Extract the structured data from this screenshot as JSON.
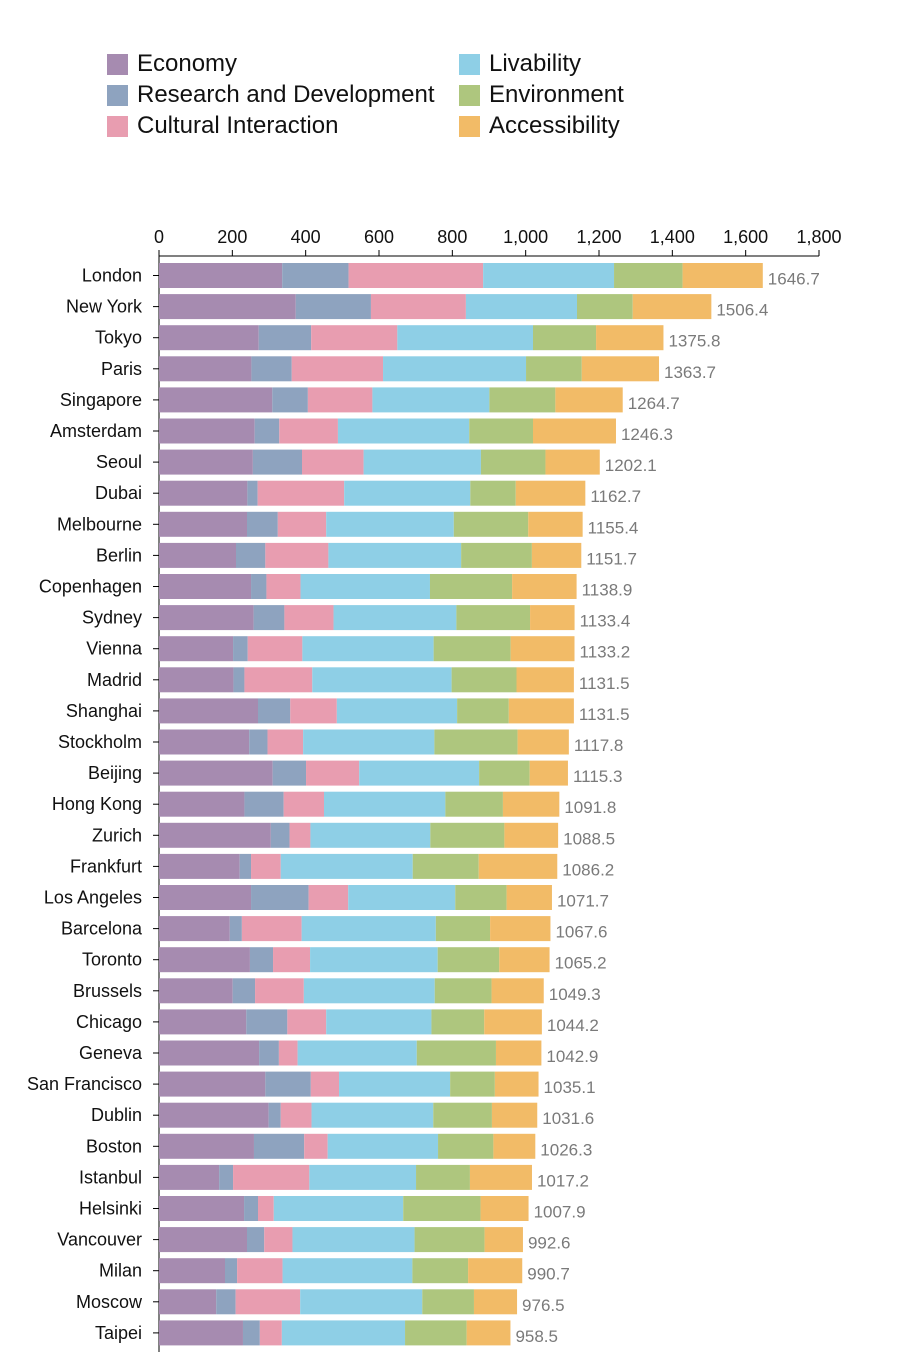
{
  "chart_data": {
    "type": "bar",
    "orientation": "horizontal",
    "stacked": true,
    "xlim": [
      0,
      1800
    ],
    "xticks": [
      0,
      200,
      400,
      600,
      800,
      1000,
      1200,
      1400,
      1600,
      1800
    ],
    "xtick_labels": [
      "0",
      "200",
      "400",
      "600",
      "800",
      "1,000",
      "1,200",
      "1,400",
      "1,600",
      "1,800"
    ],
    "legend_position": "top",
    "series": [
      {
        "name": "Economy",
        "color": "#a68bb0"
      },
      {
        "name": "Research and Development",
        "color": "#8ea3bf"
      },
      {
        "name": "Cultural Interaction",
        "color": "#e89db0"
      },
      {
        "name": "Livability",
        "color": "#8ecfe6"
      },
      {
        "name": "Environment",
        "color": "#aec67e"
      },
      {
        "name": "Accessibility",
        "color": "#f2bb67"
      }
    ],
    "categories": [
      "London",
      "New York",
      "Tokyo",
      "Paris",
      "Singapore",
      "Amsterdam",
      "Seoul",
      "Dubai",
      "Melbourne",
      "Berlin",
      "Copenhagen",
      "Sydney",
      "Vienna",
      "Madrid",
      "Shanghai",
      "Stockholm",
      "Beijing",
      "Hong Kong",
      "Zurich",
      "Frankfurt",
      "Los Angeles",
      "Barcelona",
      "Toronto",
      "Brussels",
      "Chicago",
      "Geneva",
      "San Francisco",
      "Dublin",
      "Boston",
      "Istanbul",
      "Helsinki",
      "Vancouver",
      "Milan",
      "Moscow",
      "Taipei"
    ],
    "values": [
      [
        336,
        181,
        367,
        357,
        187,
        218.7
      ],
      [
        373,
        205,
        259,
        303,
        152,
        214.4
      ],
      [
        272,
        143,
        235,
        370,
        172,
        183.8
      ],
      [
        252,
        110,
        249,
        390,
        152,
        210.7
      ],
      [
        309,
        97,
        176,
        319,
        180,
        183.7
      ],
      [
        261,
        67,
        160,
        358,
        174,
        226.3
      ],
      [
        256,
        134,
        168,
        320,
        176,
        148.1
      ],
      [
        241,
        28,
        236,
        344,
        124,
        189.7
      ],
      [
        240,
        84,
        132,
        348,
        203,
        148.4
      ],
      [
        210,
        80,
        172,
        362,
        193,
        134.7
      ],
      [
        251,
        42,
        93,
        353,
        224,
        175.9
      ],
      [
        258,
        84,
        134,
        335,
        201,
        121.4
      ],
      [
        202,
        40,
        149,
        358,
        210,
        174.2
      ],
      [
        203,
        30,
        185,
        380,
        177,
        156.5
      ],
      [
        270,
        88,
        127,
        328,
        141,
        177.5
      ],
      [
        246,
        50,
        97,
        358,
        227,
        139.8
      ],
      [
        310,
        91,
        145,
        327,
        138,
        104.3
      ],
      [
        233,
        107,
        110,
        331,
        157,
        153.8
      ],
      [
        305,
        51,
        57,
        327,
        202,
        146.5
      ],
      [
        220,
        31,
        81,
        360,
        180,
        214.2
      ],
      [
        251,
        157,
        108,
        292,
        140,
        123.7
      ],
      [
        193,
        33,
        163,
        366,
        148,
        164.6
      ],
      [
        248,
        63,
        101,
        348,
        168,
        137.2
      ],
      [
        201,
        61,
        133,
        357,
        155,
        142.3
      ],
      [
        238,
        112,
        106,
        287,
        144,
        157.2
      ],
      [
        273,
        54,
        51,
        325,
        216,
        123.9
      ],
      [
        290,
        124,
        77,
        303,
        122,
        119.1
      ],
      [
        299,
        33,
        84,
        332,
        160,
        123.6
      ],
      [
        259,
        137,
        64,
        301,
        151,
        114.3
      ],
      [
        164,
        38,
        208,
        291,
        147,
        169.2
      ],
      [
        232,
        38,
        43,
        353,
        211,
        130.9
      ],
      [
        240,
        47,
        77,
        333,
        191,
        104.6
      ],
      [
        180,
        33,
        124,
        354,
        152,
        147.7
      ],
      [
        156,
        53,
        176,
        333,
        141,
        117.5
      ],
      [
        229,
        46,
        60,
        336,
        168,
        119.5
      ]
    ],
    "totals": [
      "1646.7",
      "1506.4",
      "1375.8",
      "1363.7",
      "1264.7",
      "1246.3",
      "1202.1",
      "1162.7",
      "1155.4",
      "1151.7",
      "1138.9",
      "1133.4",
      "1133.2",
      "1131.5",
      "1131.5",
      "1117.8",
      "1115.3",
      "1091.8",
      "1088.5",
      "1086.2",
      "1071.7",
      "1067.6",
      "1065.2",
      "1049.3",
      "1044.2",
      "1042.9",
      "1035.1",
      "1031.6",
      "1026.3",
      "1017.2",
      "1007.9",
      "992.6",
      "990.7",
      "976.5",
      "958.5"
    ]
  }
}
